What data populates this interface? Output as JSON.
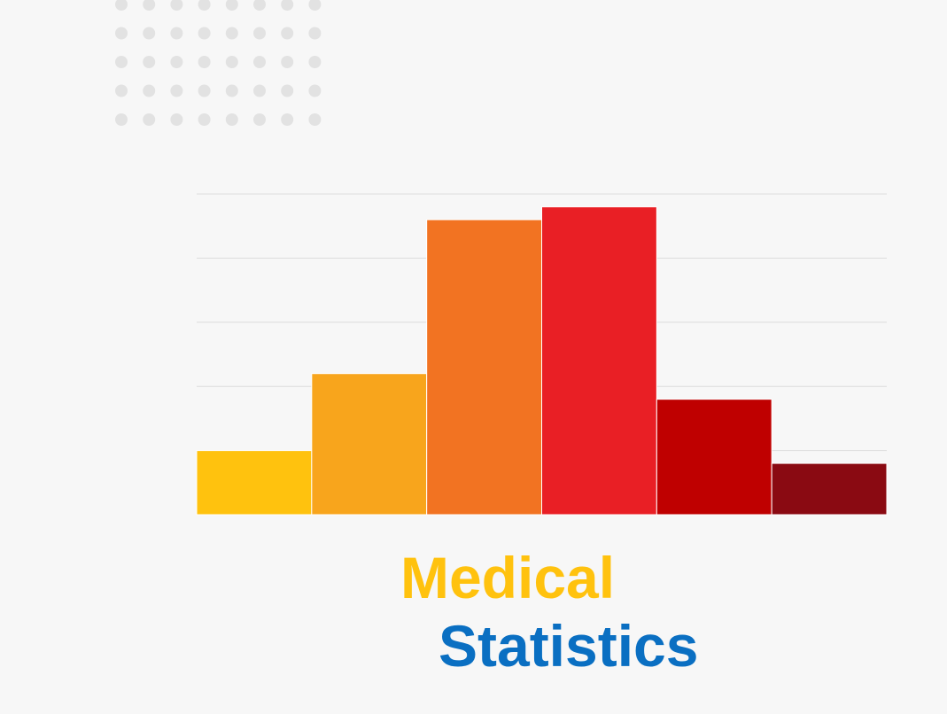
{
  "chart_data": {
    "type": "bar",
    "title_lines": [
      {
        "text": "Medical",
        "color": "#ffc20e"
      },
      {
        "text": "Statistics",
        "color": "#0a6fc2"
      }
    ],
    "categories": [
      null,
      null,
      null,
      null,
      null,
      null
    ],
    "values": [
      1.0,
      2.2,
      4.6,
      4.8,
      1.8,
      0.8
    ],
    "colors": [
      "#ffc20e",
      "#f8a51c",
      "#f27322",
      "#e91f25",
      "#bf0000",
      "#8a0a12"
    ],
    "ylim": [
      0,
      5
    ],
    "yticks": [
      0,
      1,
      2,
      3,
      4,
      5
    ],
    "grid": true
  }
}
